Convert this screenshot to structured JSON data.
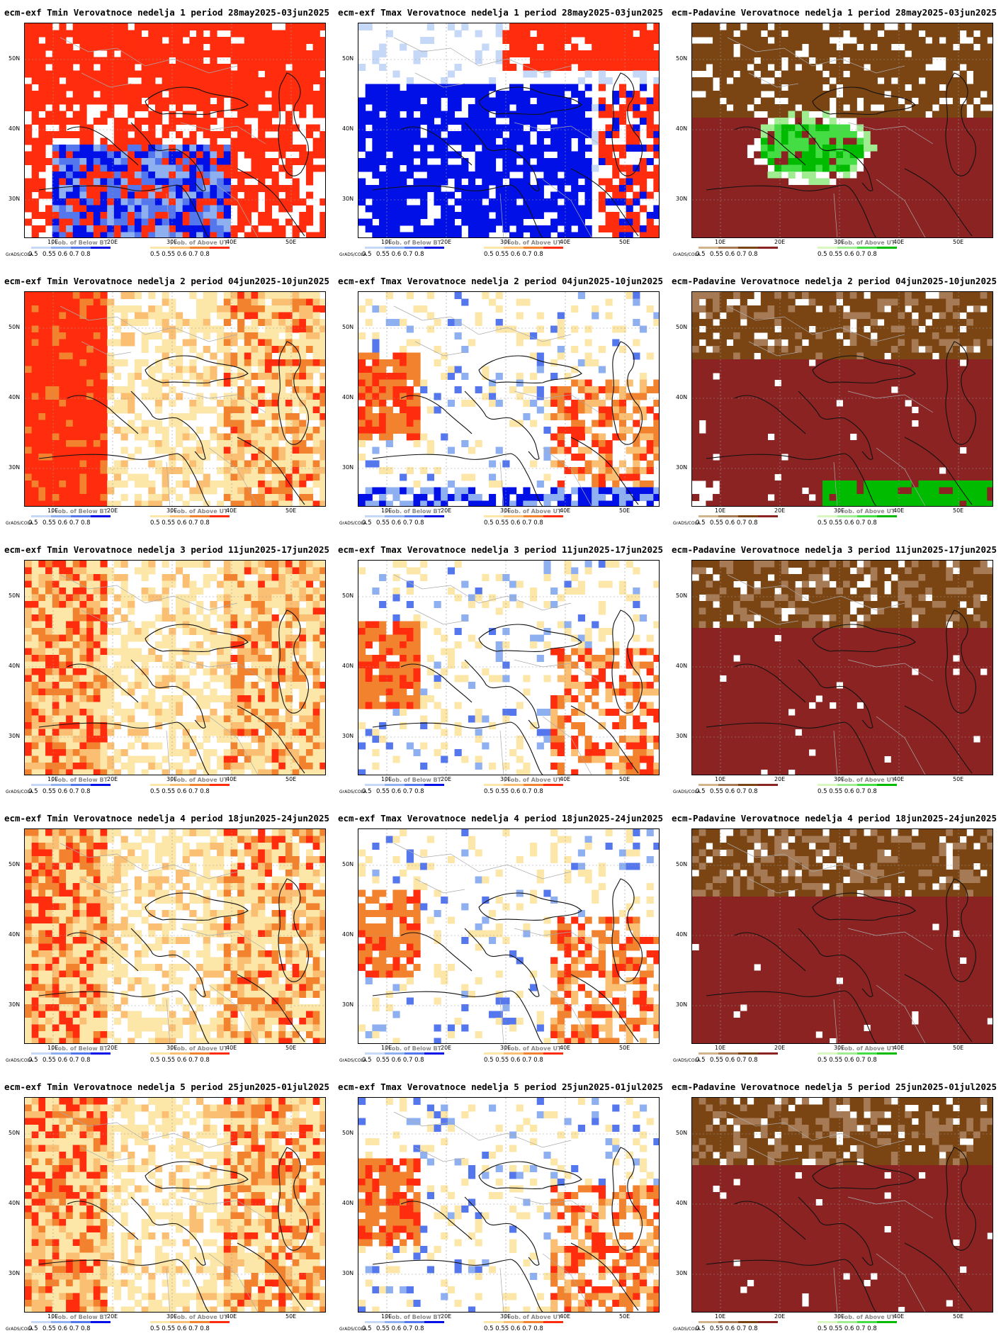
{
  "grads_label": "GrADS/COLA",
  "legend_values": "0.5   0.55   0.6   0.7   0.8",
  "legend_values_a": "0.55   0.6   0.7   0.8",
  "lat_labels": [
    "50N",
    "40N",
    "30N"
  ],
  "lon_labels": [
    "10E",
    "20E",
    "30E",
    "40E",
    "50E"
  ],
  "legend_titles": {
    "below": "Prob. of Below BT",
    "above": "Prob. of Above UT"
  },
  "colors": {
    "below_ramp": [
      "#c6d8f7",
      "#8fb0f0",
      "#5577ee",
      "#0010e6"
    ],
    "above_ramp": [
      "#fde7a8",
      "#fbbf73",
      "#f2822e",
      "#ff2d0d"
    ],
    "dry_ramp": [
      "#d2b48c",
      "#a57a55",
      "#7a4413",
      "#8b2323"
    ],
    "wet_ramp": [
      "#d8f8c0",
      "#a0ec90",
      "#44dd44",
      "#00bb00"
    ]
  },
  "rows": [
    {
      "titles": [
        "ecm-exf Tmin Verovatnoce nedelja 1 period 28may2025-03jun2025",
        "ecm-exf Tmax Verovatnoce nedelja 1 period 28may2025-03jun2025",
        "ecm-Padavine Verovatnoce nedelja 1 period 28may2025-03jun2025"
      ]
    },
    {
      "titles": [
        "ecm-exf Tmin Verovatnoce nedelja 2 period 04jun2025-10jun2025",
        "ecm-exf Tmax Verovatnoce nedelja 2 period 04jun2025-10jun2025",
        "ecm-Padavine Verovatnoce nedelja 2 period 04jun2025-10jun2025"
      ]
    },
    {
      "titles": [
        "ecm-exf Tmin Verovatnoce nedelja 3 period 11jun2025-17jun2025",
        "ecm-exf Tmax Verovatnoce nedelja 3 period 11jun2025-17jun2025",
        "ecm-Padavine Verovatnoce nedelja 3 period 11jun2025-17jun2025"
      ]
    },
    {
      "titles": [
        "ecm-exf Tmin Verovatnoce nedelja 4 period 18jun2025-24jun2025",
        "ecm-exf Tmax Verovatnoce nedelja 4 period 18jun2025-24jun2025",
        "ecm-Padavine Verovatnoce nedelja 4 period 18jun2025-24jun2025"
      ]
    },
    {
      "titles": [
        "ecm-exf Tmin Verovatnoce nedelja 5 period 25jun2025-01jul2025",
        "ecm-exf Tmax Verovatnoce nedelja 5 period 25jun2025-01jul2025",
        "ecm-Padavine Verovatnoce nedelja 5 period 25jun2025-01jul2025"
      ]
    }
  ]
}
